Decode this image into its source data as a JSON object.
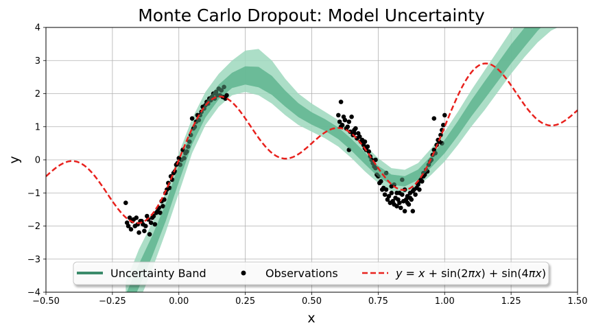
{
  "chart_data": {
    "type": "line",
    "title": "Monte Carlo Dropout: Model Uncertainty",
    "xlabel": "x",
    "ylabel": "y",
    "xlim": [
      -0.5,
      1.5
    ],
    "ylim": [
      -4,
      4
    ],
    "grid": true,
    "legend_placement": "bottom-center",
    "x_ticks": [
      "−0.50",
      "−0.25",
      "0.00",
      "0.25",
      "0.50",
      "0.75",
      "1.00",
      "1.25",
      "1.50"
    ],
    "y_ticks": [
      "−4",
      "−3",
      "−2",
      "−1",
      "0",
      "1",
      "2",
      "3",
      "4"
    ],
    "series": [
      {
        "name": "Uncertainty Band",
        "kind": "band",
        "color": "#3a8a6a",
        "band_color": "#9ed8bd",
        "x": [
          -0.2,
          -0.15,
          -0.1,
          -0.05,
          0.0,
          0.05,
          0.1,
          0.15,
          0.2,
          0.25,
          0.3,
          0.35,
          0.4,
          0.45,
          0.5,
          0.55,
          0.6,
          0.65,
          0.7,
          0.75,
          0.8,
          0.85,
          0.9,
          0.95,
          1.0,
          1.05,
          1.1,
          1.15,
          1.2,
          1.25,
          1.3,
          1.35,
          1.4,
          1.45,
          1.5
        ],
        "mean": [
          -4.4,
          -3.5,
          -2.6,
          -1.6,
          -0.4,
          0.7,
          1.5,
          2.05,
          2.4,
          2.55,
          2.5,
          2.25,
          1.85,
          1.5,
          1.25,
          1.05,
          0.8,
          0.45,
          0.05,
          -0.35,
          -0.6,
          -0.65,
          -0.45,
          -0.05,
          0.4,
          0.95,
          1.55,
          2.1,
          2.65,
          3.2,
          3.7,
          4.2,
          4.6,
          4.9,
          5.2
        ],
        "lower": [
          -5.2,
          -4.3,
          -3.3,
          -2.2,
          -1.0,
          0.2,
          1.05,
          1.6,
          1.95,
          2.05,
          1.95,
          1.7,
          1.35,
          1.05,
          0.85,
          0.65,
          0.4,
          0.05,
          -0.35,
          -0.7,
          -0.95,
          -1.0,
          -0.8,
          -0.45,
          -0.05,
          0.45,
          1.0,
          1.5,
          2.05,
          2.6,
          3.1,
          3.55,
          3.9,
          4.1,
          4.3
        ],
        "upper": [
          -3.7,
          -2.7,
          -1.9,
          -1.0,
          0.2,
          1.25,
          2.05,
          2.6,
          3.0,
          3.3,
          3.35,
          3.0,
          2.45,
          2.0,
          1.7,
          1.45,
          1.2,
          0.85,
          0.45,
          0.05,
          -0.25,
          -0.3,
          -0.1,
          0.35,
          0.85,
          1.45,
          2.1,
          2.7,
          3.3,
          3.9,
          4.4,
          4.9,
          5.3,
          5.7,
          6.0
        ]
      },
      {
        "name": "Observations",
        "kind": "scatter",
        "color": "#000000",
        "x": [
          -0.2,
          -0.195,
          -0.19,
          -0.185,
          -0.18,
          -0.175,
          -0.17,
          -0.165,
          -0.16,
          -0.155,
          -0.15,
          -0.145,
          -0.14,
          -0.135,
          -0.13,
          -0.125,
          -0.12,
          -0.115,
          -0.11,
          -0.105,
          -0.1,
          -0.095,
          -0.09,
          -0.085,
          -0.08,
          -0.075,
          -0.07,
          -0.065,
          -0.06,
          -0.055,
          -0.05,
          -0.045,
          -0.04,
          -0.035,
          -0.03,
          -0.025,
          -0.02,
          -0.015,
          -0.01,
          -0.005,
          0.0,
          0.005,
          0.01,
          0.015,
          0.02,
          0.025,
          0.03,
          0.035,
          0.04,
          0.045,
          0.05,
          0.055,
          0.06,
          0.065,
          0.07,
          0.075,
          0.08,
          0.085,
          0.09,
          0.095,
          0.1,
          0.105,
          0.11,
          0.115,
          0.12,
          0.125,
          0.13,
          0.135,
          0.14,
          0.145,
          0.15,
          0.155,
          0.16,
          0.165,
          0.17,
          0.175,
          0.18,
          0.6,
          0.605,
          0.61,
          0.615,
          0.62,
          0.625,
          0.63,
          0.635,
          0.64,
          0.645,
          0.65,
          0.655,
          0.66,
          0.665,
          0.67,
          0.675,
          0.68,
          0.685,
          0.69,
          0.695,
          0.7,
          0.705,
          0.71,
          0.715,
          0.72,
          0.725,
          0.73,
          0.735,
          0.74,
          0.745,
          0.75,
          0.755,
          0.76,
          0.765,
          0.77,
          0.775,
          0.78,
          0.785,
          0.79,
          0.795,
          0.8,
          0.805,
          0.81,
          0.815,
          0.82,
          0.825,
          0.83,
          0.835,
          0.84,
          0.845,
          0.85,
          0.855,
          0.86,
          0.865,
          0.87,
          0.875,
          0.88,
          0.885,
          0.89,
          0.895,
          0.9,
          0.905,
          0.91,
          0.915,
          0.92,
          0.925,
          0.93,
          0.935,
          0.94,
          0.945,
          0.95,
          0.955,
          0.96,
          0.965,
          0.97,
          0.975,
          0.98,
          0.985,
          0.99,
          0.995,
          1.0,
          0.61,
          0.64,
          0.66,
          0.7,
          0.74,
          0.78,
          0.8,
          0.82,
          0.84,
          0.86,
          0.88,
          0.9,
          0.92,
          0.96,
          0.99,
          0.81,
          0.83,
          0.85,
          0.87
        ],
        "y": [
          -1.3,
          -1.9,
          -2.0,
          -1.75,
          -2.1,
          -1.85,
          -1.8,
          -2.0,
          -1.75,
          -1.95,
          -2.2,
          -1.85,
          -1.85,
          -1.95,
          -2.15,
          -2.0,
          -1.7,
          -1.8,
          -2.25,
          -1.9,
          -1.75,
          -1.7,
          -1.95,
          -1.6,
          -1.55,
          -1.45,
          -1.6,
          -1.25,
          -1.4,
          -1.2,
          -1.0,
          -0.9,
          -0.7,
          -0.85,
          -0.5,
          -0.6,
          -0.4,
          -0.35,
          -0.15,
          -0.1,
          0.05,
          -0.15,
          0.0,
          0.3,
          0.05,
          0.2,
          0.25,
          0.4,
          0.55,
          0.75,
          1.25,
          0.95,
          1.0,
          1.15,
          1.35,
          1.2,
          1.35,
          1.45,
          1.6,
          1.55,
          1.65,
          1.75,
          1.7,
          1.85,
          1.8,
          1.9,
          2.0,
          1.85,
          2.05,
          1.95,
          2.15,
          1.95,
          2.1,
          1.9,
          2.2,
          1.85,
          1.95,
          1.35,
          1.15,
          1.75,
          1.05,
          1.3,
          1.2,
          0.95,
          1.0,
          1.15,
          0.85,
          1.3,
          0.75,
          0.9,
          0.95,
          0.65,
          0.8,
          0.7,
          0.55,
          0.6,
          0.45,
          0.55,
          0.3,
          0.4,
          0.25,
          0.1,
          0.0,
          -0.1,
          -0.2,
          -0.25,
          -0.45,
          -0.5,
          -0.7,
          -0.65,
          -0.9,
          -0.85,
          -1.05,
          -0.9,
          -1.2,
          -1.1,
          -1.3,
          -1.0,
          -1.25,
          -1.35,
          -1.15,
          -1.4,
          -1.2,
          -1.3,
          -1.45,
          -1.05,
          -1.25,
          -1.55,
          -1.2,
          -1.1,
          -1.35,
          -1.0,
          -1.2,
          -1.55,
          -0.9,
          -1.05,
          -0.85,
          -0.75,
          -0.9,
          -0.6,
          -0.65,
          -0.5,
          -0.45,
          -0.3,
          -0.35,
          -0.15,
          -0.05,
          0.0,
          0.15,
          0.3,
          0.2,
          0.45,
          0.6,
          0.55,
          0.75,
          0.9,
          1.05,
          1.35,
          1.0,
          0.3,
          0.8,
          0.35,
          0.0,
          -0.4,
          -0.8,
          -1.0,
          -0.6,
          -1.3,
          -0.95,
          -0.7,
          -0.4,
          1.25,
          0.5,
          -0.75,
          -1.0,
          -0.9,
          -1.15
        ]
      },
      {
        "name": "y = x + sin(2πx) + sin(4πx)",
        "kind": "line",
        "color": "#e8211d",
        "dash": "dashed"
      }
    ]
  },
  "legend": {
    "band_label": "Uncertainty Band",
    "obs_label": "Observations",
    "func_label_prefix": "y",
    "func_label_eq": " = ",
    "func_label_x": "x",
    "func_label_plus1": " + sin(2",
    "func_label_pi": "π",
    "func_label_x2": "x",
    "func_label_close1": ") + sin(4",
    "func_label_pi2": "π",
    "func_label_x3": "x",
    "func_label_close2": ")"
  }
}
